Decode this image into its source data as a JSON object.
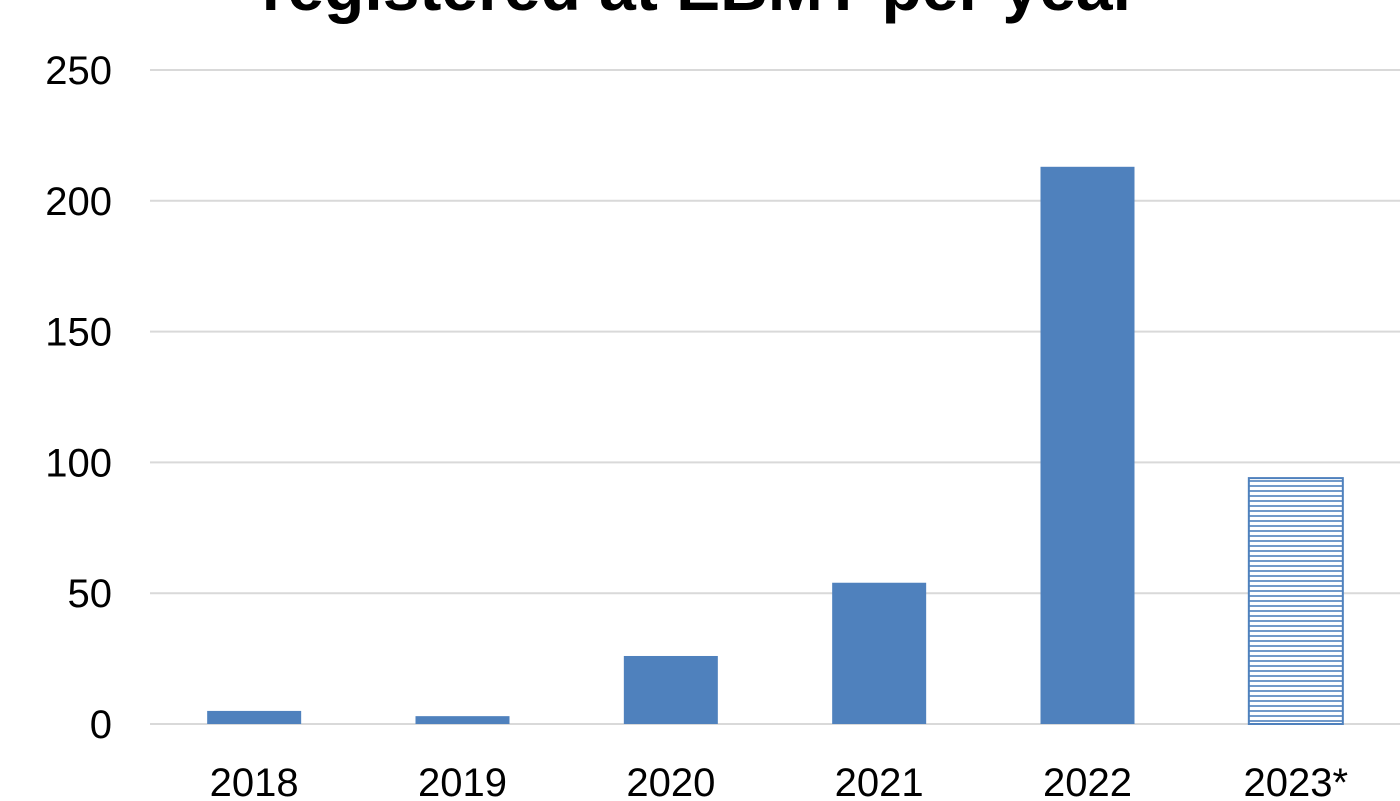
{
  "chart_data": {
    "type": "bar",
    "title": "registered at EBMT per year",
    "categories": [
      "2018",
      "2019",
      "2020",
      "2021",
      "2022",
      "2023*"
    ],
    "values": [
      5,
      3,
      26,
      54,
      213,
      94
    ],
    "projected": [
      false,
      false,
      false,
      false,
      false,
      true
    ],
    "y_ticks": [
      "0",
      "50",
      "100",
      "150",
      "200",
      "250"
    ],
    "ylim": [
      0,
      250
    ],
    "xlabel": "",
    "ylabel": "",
    "grid": true,
    "legend": "none",
    "colors": {
      "bar": "#4f81bd",
      "projected_bar": "#4f81bd",
      "grid": "#d9d9d9",
      "text": "#000000"
    }
  }
}
